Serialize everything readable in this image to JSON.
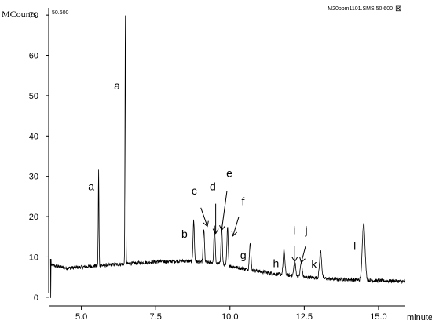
{
  "chart_data": {
    "type": "line",
    "title": "",
    "xlabel": "minutes",
    "ylabel": "MCounts",
    "xlim": [
      3.9,
      15.9
    ],
    "ylim": [
      -1,
      71
    ],
    "x_ticks": [
      5.0,
      7.5,
      10.0,
      12.5,
      15.0
    ],
    "x_tick_labels": [
      "5.0",
      "7.5",
      "10.0",
      "12.5",
      "15.0"
    ],
    "y_ticks": [
      0,
      10,
      20,
      30,
      40,
      50,
      60,
      70
    ],
    "y_tick_labels": [
      "0",
      "10",
      "20",
      "30",
      "40",
      "50",
      "60",
      "70"
    ],
    "header_left": "50.600",
    "header_right": "M20ppm1101.SMS 50:600",
    "header_box": "⊠",
    "grid": false,
    "legend": "none",
    "color": "#000000",
    "baseline": [
      {
        "x": 3.95,
        "y": 8.0
      },
      {
        "x": 4.5,
        "y": 7.2
      },
      {
        "x": 5.5,
        "y": 7.8
      },
      {
        "x": 6.5,
        "y": 8.3
      },
      {
        "x": 7.5,
        "y": 8.8
      },
      {
        "x": 8.5,
        "y": 9.0
      },
      {
        "x": 9.5,
        "y": 8.5
      },
      {
        "x": 10.5,
        "y": 7.0
      },
      {
        "x": 11.5,
        "y": 5.8
      },
      {
        "x": 12.5,
        "y": 5.0
      },
      {
        "x": 13.5,
        "y": 4.5
      },
      {
        "x": 14.5,
        "y": 4.2
      },
      {
        "x": 15.9,
        "y": 3.9
      }
    ],
    "start_dip": {
      "x": 3.97,
      "min": -0.2,
      "max": 9.5
    },
    "peaks": [
      {
        "x": 5.58,
        "y": 31.5,
        "width": 0.012
      },
      {
        "x": 6.48,
        "y": 70.5,
        "width": 0.012
      },
      {
        "x": 8.78,
        "y": 19.0,
        "width": 0.022
      },
      {
        "x": 9.12,
        "y": 17.0,
        "width": 0.022
      },
      {
        "x": 9.48,
        "y": 17.5,
        "width": 0.022
      },
      {
        "x": 9.72,
        "y": 17.5,
        "width": 0.022
      },
      {
        "x": 9.92,
        "y": 17.3,
        "width": 0.022
      },
      {
        "x": 10.68,
        "y": 13.7,
        "width": 0.025
      },
      {
        "x": 11.82,
        "y": 11.6,
        "width": 0.03
      },
      {
        "x": 12.18,
        "y": 9.0,
        "width": 0.03
      },
      {
        "x": 12.4,
        "y": 8.7,
        "width": 0.03
      },
      {
        "x": 13.05,
        "y": 11.4,
        "width": 0.035
      },
      {
        "x": 14.5,
        "y": 18.6,
        "width": 0.045
      }
    ],
    "annotations": [
      {
        "text": "a",
        "x": 5.33,
        "y": 26.5
      },
      {
        "text": "a",
        "x": 6.2,
        "y": 51.5
      },
      {
        "text": "b",
        "x": 8.47,
        "y": 14.8
      },
      {
        "text": "c",
        "x": 8.8,
        "y": 25.5
      },
      {
        "text": "d",
        "x": 9.42,
        "y": 26.5
      },
      {
        "text": "e",
        "x": 9.98,
        "y": 29.8
      },
      {
        "text": "f",
        "x": 10.44,
        "y": 22.8
      },
      {
        "text": "g",
        "x": 10.45,
        "y": 9.5
      },
      {
        "text": "h",
        "x": 11.55,
        "y": 7.5
      },
      {
        "text": "i",
        "x": 12.18,
        "y": 15.6
      },
      {
        "text": "j",
        "x": 12.57,
        "y": 15.6
      },
      {
        "text": "k",
        "x": 12.83,
        "y": 7.3
      },
      {
        "text": "l",
        "x": 14.2,
        "y": 11.7
      }
    ],
    "arrows": [
      {
        "x1": 9.02,
        "y1": 22.2,
        "x2": 9.24,
        "y2": 17.6
      },
      {
        "x1": 9.52,
        "y1": 23.2,
        "x2": 9.52,
        "y2": 15.8
      },
      {
        "x1": 9.9,
        "y1": 26.4,
        "x2": 9.72,
        "y2": 16.6
      },
      {
        "x1": 10.3,
        "y1": 20.0,
        "x2": 10.1,
        "y2": 15.2
      },
      {
        "x1": 12.18,
        "y1": 12.8,
        "x2": 12.18,
        "y2": 8.8
      },
      {
        "x1": 12.55,
        "y1": 12.8,
        "x2": 12.4,
        "y2": 8.6
      }
    ]
  }
}
